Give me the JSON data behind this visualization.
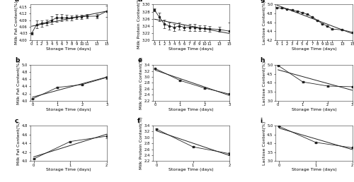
{
  "panel_a": {
    "label": "a",
    "x": [
      0,
      1,
      2,
      3,
      4,
      5,
      6,
      7,
      8,
      9,
      10,
      11,
      13,
      15
    ],
    "y": [
      4.03,
      4.07,
      4.075,
      4.08,
      4.09,
      4.1,
      4.1,
      4.1,
      4.1,
      4.105,
      4.105,
      4.107,
      4.108,
      4.13
    ],
    "yerr": [
      0.005,
      0.018,
      0.015,
      0.013,
      0.018,
      0.018,
      0.016,
      0.013,
      0.01,
      0.01,
      0.01,
      0.01,
      0.01,
      0.025
    ],
    "xlabel": "Storage Time (days)",
    "ylabel": "Milk Fat Content(%)",
    "ylim": [
      4.0,
      4.16
    ],
    "yticks": [
      4.0,
      4.03,
      4.06,
      4.09,
      4.12,
      4.15
    ],
    "xlim": [
      -0.3,
      15
    ],
    "xticks": [
      0,
      1,
      2,
      3,
      4,
      5,
      6,
      7,
      8,
      9,
      10,
      11,
      13,
      15
    ]
  },
  "panel_b": {
    "label": "b",
    "x": [
      0,
      1,
      2,
      3
    ],
    "y": [
      4.05,
      4.37,
      4.45,
      4.65
    ],
    "yerr": [
      0.005,
      0.02,
      0.02,
      0.04
    ],
    "xlabel": "Storage Time (days)",
    "ylabel": "Milk Fat Content(%)",
    "ylim": [
      4.0,
      5.0
    ],
    "yticks": [
      4.0,
      4.2,
      4.4,
      4.6,
      4.8,
      5.0
    ],
    "xlim": [
      -0.1,
      3
    ],
    "xticks": [
      0,
      1,
      2,
      3
    ]
  },
  "panel_c": {
    "label": "c",
    "x": [
      0,
      1,
      2
    ],
    "y": [
      4.05,
      4.44,
      4.56
    ],
    "yerr": [
      0.005,
      0.015,
      0.05
    ],
    "xlabel": "Storage Time (days)",
    "ylabel": "Milk Fat Content(%)",
    "ylim": [
      4.0,
      4.8
    ],
    "yticks": [
      4.0,
      4.2,
      4.4,
      4.6,
      4.8
    ],
    "xlim": [
      -0.1,
      2
    ],
    "xticks": [
      0,
      1,
      2
    ]
  },
  "panel_d": {
    "label": "d",
    "x": [
      0,
      1,
      2,
      3,
      4,
      5,
      6,
      7,
      8,
      9,
      10,
      11,
      13,
      15
    ],
    "y": [
      3.285,
      3.265,
      3.245,
      3.24,
      3.236,
      3.24,
      3.236,
      3.236,
      3.236,
      3.233,
      3.233,
      3.232,
      3.23,
      3.225
    ],
    "yerr": [
      0.004,
      0.012,
      0.012,
      0.01,
      0.01,
      0.01,
      0.008,
      0.01,
      0.01,
      0.008,
      0.008,
      0.008,
      0.007,
      0.025
    ],
    "xlabel": "Storage Time (days)",
    "ylabel": "Milk Protein Content(%)",
    "ylim": [
      3.2,
      3.3
    ],
    "yticks": [
      3.2,
      3.22,
      3.24,
      3.26,
      3.28,
      3.3
    ],
    "xlim": [
      -0.3,
      15
    ],
    "xticks": [
      0,
      1,
      2,
      3,
      4,
      5,
      6,
      7,
      8,
      9,
      10,
      11,
      13,
      15
    ]
  },
  "panel_e": {
    "label": "e",
    "x": [
      0,
      1,
      2,
      3
    ],
    "y": [
      3.28,
      2.88,
      2.62,
      2.42
    ],
    "yerr": [
      0.015,
      0.025,
      0.025,
      0.025
    ],
    "xlabel": "Storage Time (days)",
    "ylabel": "Milk Protein Content(%)",
    "ylim": [
      2.2,
      3.4
    ],
    "yticks": [
      2.2,
      2.4,
      2.6,
      2.8,
      3.0,
      3.2,
      3.4
    ],
    "xlim": [
      -0.1,
      3
    ],
    "xticks": [
      0,
      1,
      2,
      3
    ]
  },
  "panel_f": {
    "label": "f",
    "x": [
      0,
      1,
      2
    ],
    "y": [
      3.28,
      2.68,
      2.45
    ],
    "yerr": [
      0.015,
      0.025,
      0.05
    ],
    "xlabel": "Storage Time (days)",
    "ylabel": "Milk Protein Content(%)",
    "ylim": [
      2.2,
      3.4
    ],
    "yticks": [
      2.2,
      2.4,
      2.6,
      2.8,
      3.0,
      3.2,
      3.4
    ],
    "xlim": [
      -0.1,
      2
    ],
    "xticks": [
      0,
      1,
      2
    ]
  },
  "panel_g": {
    "label": "g",
    "x": [
      0,
      1,
      2,
      3,
      4,
      5,
      6,
      7,
      8,
      9,
      10,
      11,
      13,
      15
    ],
    "y": [
      4.93,
      4.92,
      4.9,
      4.88,
      4.85,
      4.82,
      4.78,
      4.72,
      4.65,
      4.57,
      4.52,
      4.45,
      4.43,
      4.38
    ],
    "yerr": [
      0.008,
      0.008,
      0.008,
      0.008,
      0.008,
      0.008,
      0.008,
      0.008,
      0.008,
      0.008,
      0.008,
      0.008,
      0.008,
      0.008
    ],
    "xlabel": "Storage Time (days)",
    "ylabel": "Lactose Content(%)",
    "ylim": [
      4.2,
      5.0
    ],
    "yticks": [
      4.2,
      4.4,
      4.6,
      4.8,
      5.0
    ],
    "xlim": [
      -0.3,
      15
    ],
    "xticks": [
      0,
      1,
      2,
      3,
      4,
      5,
      6,
      7,
      8,
      9,
      10,
      11,
      13,
      15
    ]
  },
  "panel_h": {
    "label": "h",
    "x": [
      0,
      1,
      2,
      3
    ],
    "y": [
      4.98,
      4.05,
      3.82,
      3.78
    ],
    "yerr": [
      0.008,
      0.04,
      0.04,
      0.03
    ],
    "xlabel": "Storage Time (days)",
    "ylabel": "Lactose Content(%)",
    "ylim": [
      3.0,
      5.0
    ],
    "yticks": [
      3.0,
      3.5,
      4.0,
      4.5,
      5.0
    ],
    "xlim": [
      -0.1,
      3
    ],
    "xticks": [
      0,
      1,
      2,
      3
    ]
  },
  "panel_i": {
    "label": "i",
    "x": [
      0,
      1,
      2
    ],
    "y": [
      4.95,
      4.05,
      3.75
    ],
    "yerr": [
      0.008,
      0.03,
      0.03
    ],
    "xlabel": "Storage Time (days)",
    "ylabel": "Lactose Content(%)",
    "ylim": [
      3.0,
      5.0
    ],
    "yticks": [
      3.0,
      3.5,
      4.0,
      4.5,
      5.0
    ],
    "xlim": [
      -0.1,
      2
    ],
    "xticks": [
      0,
      1,
      2
    ]
  },
  "line_color": "#222222",
  "marker": "s",
  "markersize": 2.0,
  "data_linewidth": 0.6,
  "fit_linewidth": 0.7,
  "capsize": 1.2,
  "elinewidth": 0.5,
  "label_fontsize": 4.5,
  "tick_fontsize": 3.8,
  "panel_label_fontsize": 6.5
}
